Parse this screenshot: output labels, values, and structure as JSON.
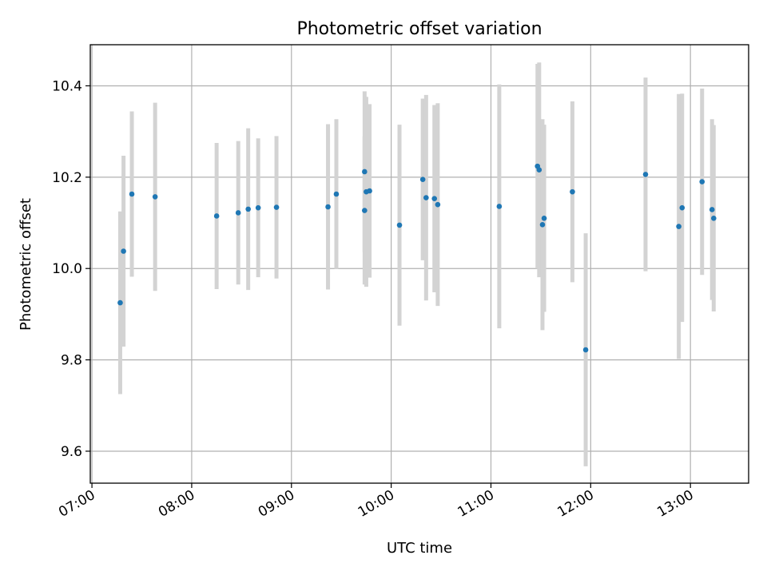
{
  "chart_data": {
    "type": "scatter",
    "title": "Photometric offset variation",
    "xlabel": "UTC time",
    "ylabel": "Photometric offset",
    "x_axis_type": "time",
    "xlim": [
      "06:59",
      "13:35"
    ],
    "ylim": [
      9.53,
      10.49
    ],
    "x_ticks": [
      "07:00",
      "08:00",
      "09:00",
      "10:00",
      "11:00",
      "12:00",
      "13:00"
    ],
    "y_ticks": [
      9.6,
      9.8,
      10.0,
      10.2,
      10.4
    ],
    "grid": true,
    "marker_color": "#1f77b4",
    "errorbar_color": "#d3d3d3",
    "points": [
      {
        "time": "07:17",
        "y": 9.925,
        "yerr": 0.2
      },
      {
        "time": "07:19",
        "y": 10.038,
        "yerr": 0.209
      },
      {
        "time": "07:24",
        "y": 10.163,
        "yerr": 0.181
      },
      {
        "time": "07:38",
        "y": 10.157,
        "yerr": 0.206
      },
      {
        "time": "08:15",
        "y": 10.115,
        "yerr": 0.16
      },
      {
        "time": "08:28",
        "y": 10.122,
        "yerr": 0.157
      },
      {
        "time": "08:34",
        "y": 10.13,
        "yerr": 0.177
      },
      {
        "time": "08:40",
        "y": 10.133,
        "yerr": 0.152
      },
      {
        "time": "08:51",
        "y": 10.134,
        "yerr": 0.156
      },
      {
        "time": "09:22",
        "y": 10.135,
        "yerr": 0.181
      },
      {
        "time": "09:27",
        "y": 10.163,
        "yerr": 0.164
      },
      {
        "time": "09:44",
        "y": 10.212,
        "yerr": 0.176
      },
      {
        "time": "09:44",
        "y": 10.127,
        "yerr": 0.162
      },
      {
        "time": "09:45",
        "y": 10.168,
        "yerr": 0.208
      },
      {
        "time": "09:47",
        "y": 10.17,
        "yerr": 0.19
      },
      {
        "time": "10:05",
        "y": 10.095,
        "yerr": 0.22
      },
      {
        "time": "10:19",
        "y": 10.195,
        "yerr": 0.177
      },
      {
        "time": "10:21",
        "y": 10.155,
        "yerr": 0.225
      },
      {
        "time": "10:26",
        "y": 10.153,
        "yerr": 0.205
      },
      {
        "time": "10:28",
        "y": 10.14,
        "yerr": 0.222
      },
      {
        "time": "11:05",
        "y": 10.136,
        "yerr": 0.267
      },
      {
        "time": "11:28",
        "y": 10.224,
        "yerr": 0.224
      },
      {
        "time": "11:29",
        "y": 10.216,
        "yerr": 0.235
      },
      {
        "time": "11:31",
        "y": 10.096,
        "yerr": 0.231
      },
      {
        "time": "11:32",
        "y": 10.11,
        "yerr": 0.205
      },
      {
        "time": "11:49",
        "y": 10.168,
        "yerr": 0.198
      },
      {
        "time": "11:57",
        "y": 9.822,
        "yerr": 0.255
      },
      {
        "time": "12:33",
        "y": 10.206,
        "yerr": 0.212
      },
      {
        "time": "12:53",
        "y": 10.092,
        "yerr": 0.29
      },
      {
        "time": "12:55",
        "y": 10.133,
        "yerr": 0.25
      },
      {
        "time": "13:07",
        "y": 10.19,
        "yerr": 0.204
      },
      {
        "time": "13:13",
        "y": 10.129,
        "yerr": 0.198
      },
      {
        "time": "13:14",
        "y": 10.11,
        "yerr": 0.204
      }
    ]
  }
}
